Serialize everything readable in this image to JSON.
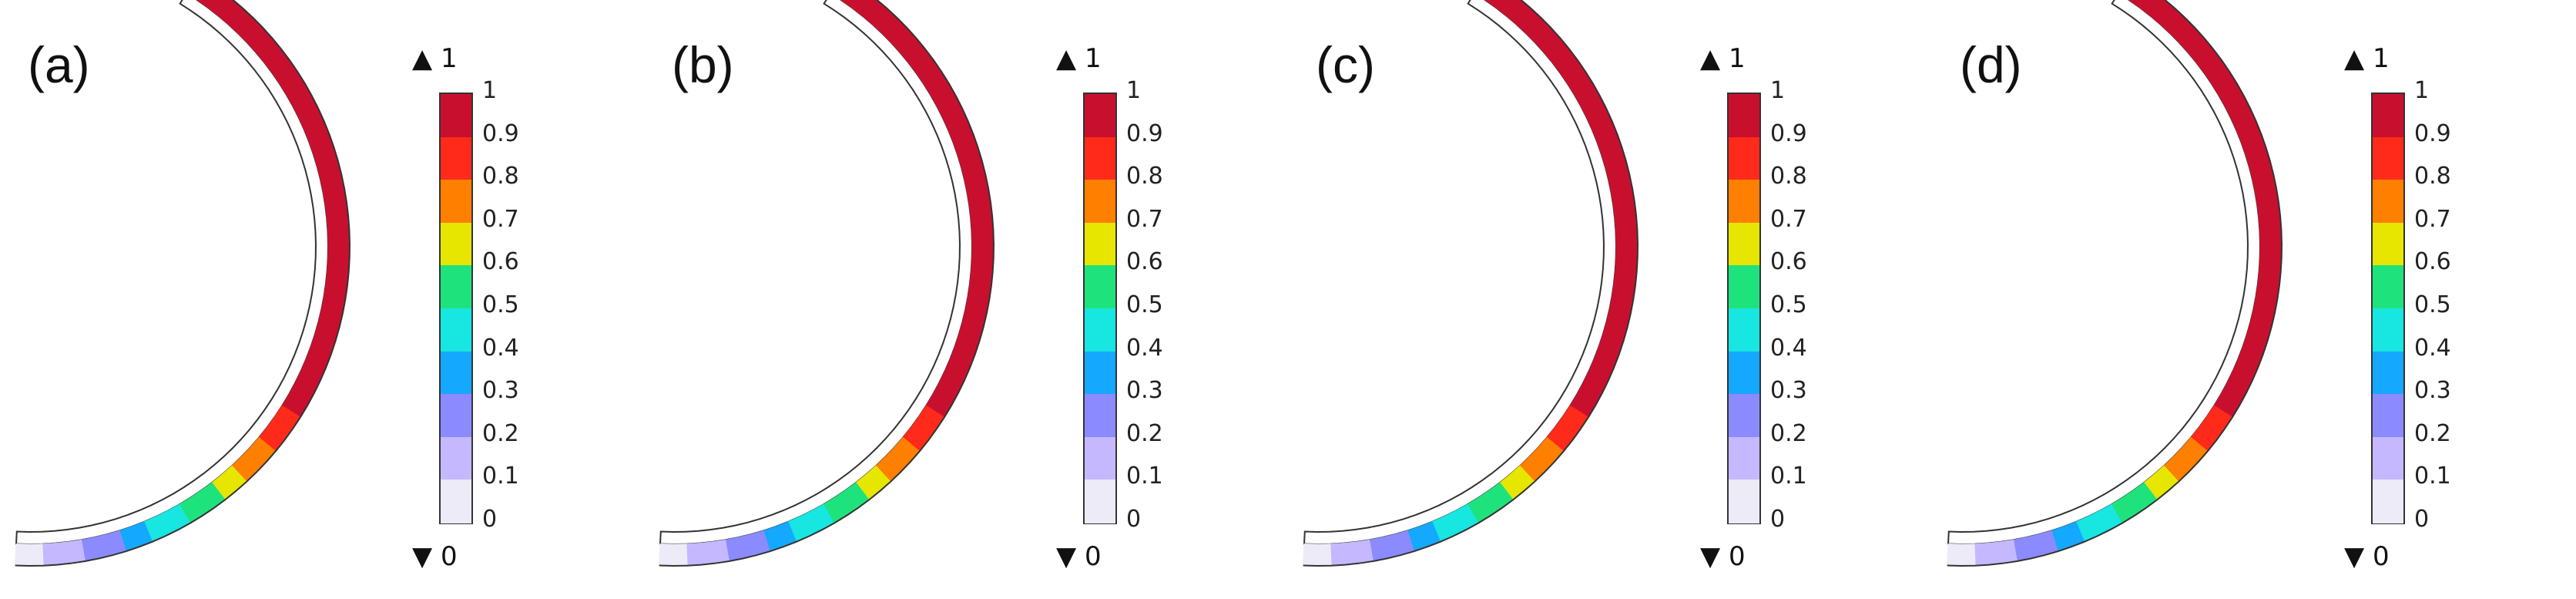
{
  "panels": [
    {
      "label": "(a)"
    },
    {
      "label": "(b)"
    },
    {
      "label": "(c)"
    },
    {
      "label": "(d)"
    }
  ],
  "scale": {
    "max_label": "▲ 1",
    "min_label": "▼ 0",
    "ticks": [
      "1",
      "0.9",
      "0.8",
      "0.7",
      "0.6",
      "0.5",
      "0.4",
      "0.3",
      "0.2",
      "0.1",
      "0"
    ],
    "colors": [
      "#c8102e",
      "#ff2a1a",
      "#ff7f00",
      "#e6e600",
      "#1ee37c",
      "#18e6e0",
      "#15a8ff",
      "#8b8bff",
      "#c6b8ff",
      "#ecebf7"
    ]
  }
}
